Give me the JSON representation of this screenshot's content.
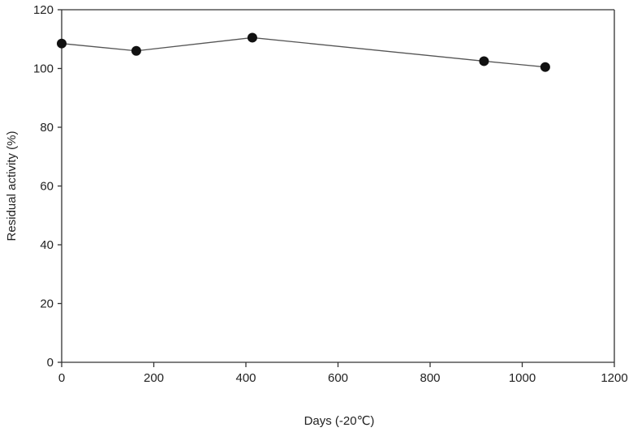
{
  "chart_data": {
    "type": "line",
    "title": "",
    "xlabel": "Days (-20℃)",
    "ylabel": "Residual activity (%)",
    "xlim": [
      0,
      1200
    ],
    "ylim": [
      0,
      120
    ],
    "xticks": [
      0,
      200,
      400,
      600,
      800,
      1000,
      1200
    ],
    "yticks": [
      0,
      20,
      40,
      60,
      80,
      100,
      120
    ],
    "grid": false,
    "legend": "none",
    "series": [
      {
        "x": [
          0,
          162,
          414,
          917,
          1050
        ],
        "y": [
          108.5,
          106,
          110.5,
          102.5,
          100.5
        ],
        "color": "#111111",
        "line_color": "#555555"
      }
    ]
  }
}
